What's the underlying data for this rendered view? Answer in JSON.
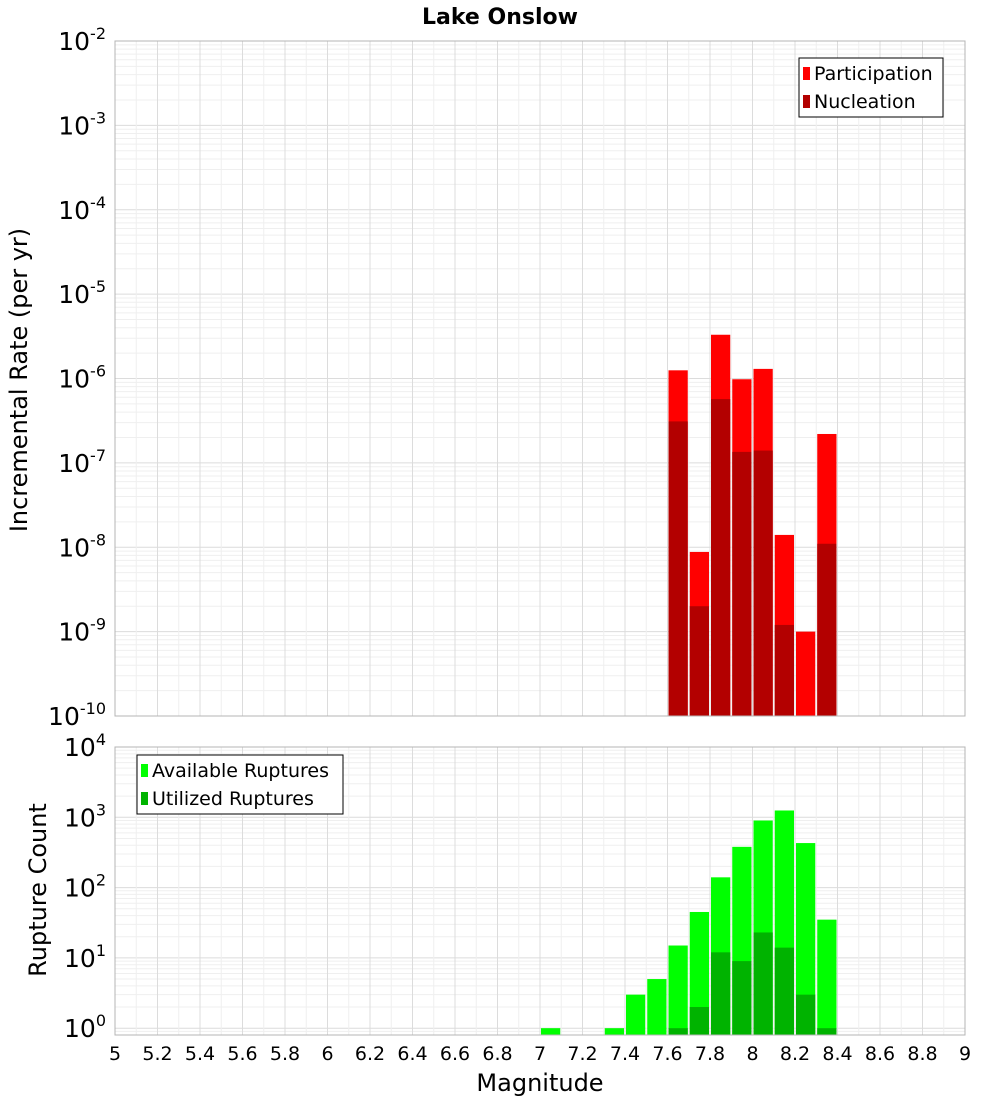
{
  "chart_data": [
    {
      "type": "bar",
      "title": "Lake Onslow",
      "xlabel": "",
      "ylabel": "Incremental Rate (per yr)",
      "y_scale": "log",
      "ylim": [
        1e-10,
        0.01
      ],
      "xlim": [
        5,
        9
      ],
      "grid": true,
      "legend_position": "top-right",
      "bin_width": 0.1,
      "x": [
        7.65,
        7.75,
        7.85,
        7.95,
        8.05,
        8.15,
        8.25,
        8.35
      ],
      "series": [
        {
          "name": "Participation",
          "color": "#ff0000",
          "values": [
            1.25e-06,
            8.8e-09,
            3.3e-06,
            9.8e-07,
            1.3e-06,
            1.4e-08,
            1e-09,
            2.2e-07
          ]
        },
        {
          "name": "Nucleation",
          "color": "#b30000",
          "values": [
            3.1e-07,
            2e-09,
            5.7e-07,
            1.35e-07,
            1.4e-07,
            1.2e-09,
            null,
            1.1e-08
          ]
        }
      ]
    },
    {
      "type": "bar",
      "title": "",
      "xlabel": "Magnitude",
      "ylabel": "Rupture Count",
      "y_scale": "log",
      "ylim": [
        0.8,
        10000
      ],
      "xlim": [
        5,
        9
      ],
      "grid": true,
      "legend_position": "top-left",
      "bin_width": 0.1,
      "x": [
        7.05,
        7.35,
        7.45,
        7.55,
        7.65,
        7.75,
        7.85,
        7.95,
        8.05,
        8.15,
        8.25,
        8.35
      ],
      "series": [
        {
          "name": "Available Ruptures",
          "color": "#00ff00",
          "values": [
            1,
            1,
            3,
            5,
            15,
            45,
            140,
            380,
            900,
            1250,
            430,
            35
          ]
        },
        {
          "name": "Utilized Ruptures",
          "color": "#00b300",
          "values": [
            null,
            null,
            null,
            null,
            1,
            2,
            12,
            9,
            23,
            14,
            3,
            1
          ]
        }
      ]
    }
  ],
  "x_ticks": [
    "5",
    "5.2",
    "5.4",
    "5.6",
    "5.8",
    "6",
    "6.2",
    "6.4",
    "6.6",
    "6.8",
    "7",
    "7.2",
    "7.4",
    "7.6",
    "7.8",
    "8",
    "8.2",
    "8.4",
    "8.6",
    "8.8",
    "9"
  ],
  "top_y_ticks": [
    {
      "base": "10",
      "exp": "-2"
    },
    {
      "base": "10",
      "exp": "-3"
    },
    {
      "base": "10",
      "exp": "-4"
    },
    {
      "base": "10",
      "exp": "-5"
    },
    {
      "base": "10",
      "exp": "-6"
    },
    {
      "base": "10",
      "exp": "-7"
    },
    {
      "base": "10",
      "exp": "-8"
    },
    {
      "base": "10",
      "exp": "-9"
    },
    {
      "base": "10",
      "exp": "-10"
    }
  ],
  "bottom_y_ticks": [
    {
      "base": "10",
      "exp": "4"
    },
    {
      "base": "10",
      "exp": "3"
    },
    {
      "base": "10",
      "exp": "2"
    },
    {
      "base": "10",
      "exp": "1"
    },
    {
      "base": "10",
      "exp": "0"
    }
  ]
}
